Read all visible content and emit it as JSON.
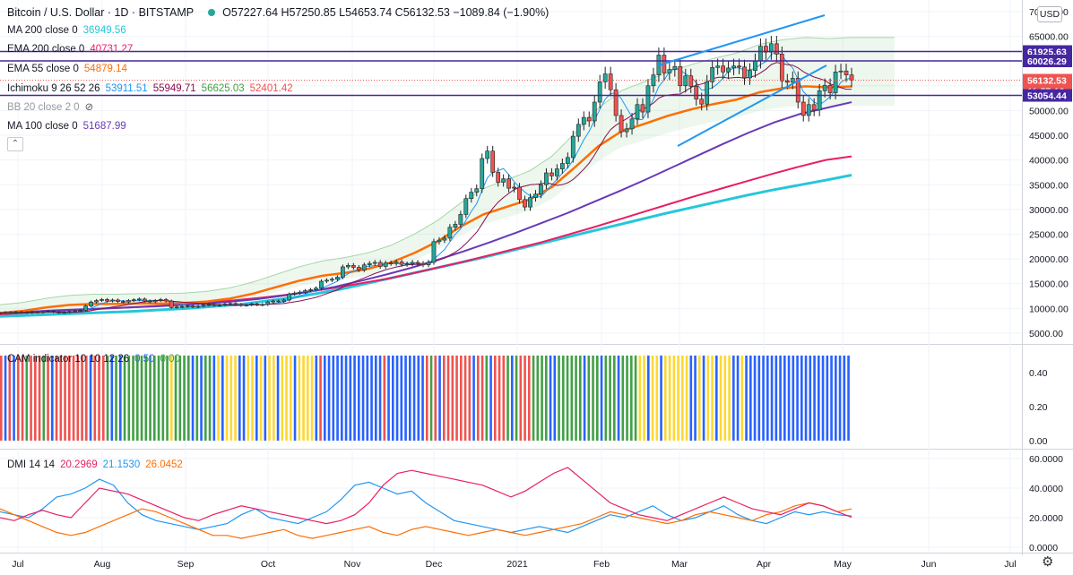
{
  "header": {
    "symbol": "Bitcoin / U.S. Dollar · 1D · BITSTAMP",
    "ohlc": "O57227.64 H57250.85 L54653.74 C56132.53 −1089.84 (−1.90%)",
    "currency_badge": "USD"
  },
  "indicators": [
    {
      "label": "MA 200 close 0",
      "values": [
        "36949.56"
      ],
      "colors": [
        "#26c6da"
      ]
    },
    {
      "label": "EMA 200 close 0",
      "values": [
        "40731.27"
      ],
      "colors": [
        "#e91e63"
      ]
    },
    {
      "label": "EMA 55 close 0",
      "values": [
        "54879.14"
      ],
      "colors": [
        "#ff6d00"
      ]
    },
    {
      "label": "Ichimoku 9 26 52 26",
      "values": [
        "53911.51",
        "55949.71",
        "56625.03",
        "52401.42"
      ],
      "colors": [
        "#2196f3",
        "#880e4f",
        "#43a047",
        "#ef5350"
      ]
    },
    {
      "label": "BB 20 close 2 0",
      "values": [],
      "colors": []
    },
    {
      "label": "MA 100 close 0",
      "values": [
        "51687.99"
      ],
      "colors": [
        "#673ab7"
      ]
    }
  ],
  "cam": {
    "label": "CAM indicator 10 10 12 26",
    "values": [
      "0.50",
      "0.00"
    ],
    "colors": [
      "#2962ff",
      "#43a047"
    ]
  },
  "dmi": {
    "label": "DMI 14 14",
    "values": [
      "20.2969",
      "21.1530",
      "26.0452"
    ],
    "colors": [
      "#e91e63",
      "#2196f3",
      "#ff6d00"
    ]
  },
  "chart_data": {
    "type": "candlestick",
    "title": "Bitcoin / U.S. Dollar · 1D · BITSTAMP",
    "x_ticks": [
      "Jul",
      "Aug",
      "Sep",
      "Oct",
      "Nov",
      "Dec",
      "2021",
      "Feb",
      "Mar",
      "Apr",
      "May",
      "Jun",
      "Jul"
    ],
    "y_ticks_main": [
      "70000.00",
      "65000.00",
      "60000.00",
      "55000.00",
      "50000.00",
      "45000.00",
      "40000.00",
      "35000.00",
      "30000.00",
      "25000.00",
      "20000.00",
      "15000.00",
      "10000.00",
      "5000.00"
    ],
    "y_ticks_main_values": [
      70000,
      65000,
      60000,
      55000,
      50000,
      45000,
      40000,
      35000,
      30000,
      25000,
      20000,
      15000,
      10000,
      5000
    ],
    "price_labels": [
      {
        "text": "61925.63",
        "value": 61925.63,
        "color": "#4527a0"
      },
      {
        "text": "60026.29",
        "value": 60026.29,
        "color": "#4527a0"
      },
      {
        "text": "56132.53",
        "value": 56132.53,
        "color": "#ef5350"
      },
      {
        "text": "11:57:12",
        "value": 54600,
        "color": "#ef5350"
      },
      {
        "text": "53054.44",
        "value": 53054.44,
        "color": "#4527a0"
      }
    ],
    "horizontal_lines": [
      61925.63,
      60026.29,
      53054.44
    ],
    "close_series": [
      9100,
      9200,
      9150,
      9300,
      9200,
      9100,
      9250,
      9200,
      9300,
      9400,
      9250,
      9150,
      9200,
      9350,
      9500,
      9600,
      10500,
      11300,
      11600,
      11800,
      11500,
      11700,
      11400,
      11300,
      11600,
      11750,
      11900,
      11500,
      11350,
      11600,
      11800,
      11500,
      10200,
      10300,
      10400,
      10500,
      10300,
      10450,
      10700,
      10800,
      10600,
      10700,
      10900,
      11000,
      10800,
      10600,
      10700,
      10900,
      10700,
      10800,
      11300,
      11500,
      11400,
      11700,
      12900,
      13100,
      13300,
      13600,
      13800,
      14100,
      15500,
      15700,
      15900,
      16300,
      18400,
      18700,
      18300,
      17800,
      18800,
      19100,
      19300,
      18500,
      19200,
      19100,
      19400,
      18900,
      19000,
      19300,
      19100,
      18800,
      19300,
      23500,
      23800,
      24200,
      26400,
      27000,
      29000,
      32200,
      33500,
      34200,
      40300,
      41800,
      37500,
      35500,
      36200,
      34300,
      34500,
      32000,
      30500,
      32400,
      33100,
      35000,
      37400,
      36800,
      38200,
      39300,
      40500,
      44800,
      47200,
      48600,
      47900,
      51700,
      55800,
      57400,
      54200,
      49000,
      45700,
      46300,
      48300,
      51200,
      49700,
      55000,
      57200,
      61200,
      57600,
      58300,
      58900,
      55000,
      57000,
      54900,
      52300,
      51300,
      55800,
      58700,
      59000,
      57800,
      58600,
      59000,
      58800,
      56600,
      58100,
      60000,
      63000,
      61800,
      63500,
      61400,
      56000,
      55700,
      56500,
      51700,
      49000,
      51200,
      50100,
      54000,
      55100,
      53600,
      57800,
      58000,
      57200,
      56100
    ],
    "ma200": [
      8400,
      8600,
      8800,
      9000,
      9200,
      9400,
      9700,
      10000,
      10400,
      10800,
      11500,
      12200,
      13100,
      14100,
      15300,
      16500,
      17700,
      18900,
      20100,
      21400,
      22700,
      24000,
      25300,
      26600,
      27900,
      29200,
      30400,
      31600,
      32800,
      33900,
      34900,
      35900,
      36949.56
    ],
    "ema200": [
      8800,
      9100,
      9400,
      9700,
      9950,
      10200,
      10500,
      10800,
      11200,
      11600,
      12100,
      12700,
      13400,
      14200,
      15100,
      16000,
      17100,
      18300,
      19500,
      20800,
      22100,
      23400,
      24900,
      26400,
      28000,
      29600,
      31200,
      32800,
      34300,
      35800,
      37300,
      38700,
      40000,
      40731.27
    ],
    "ema55": [
      9100,
      9500,
      10200,
      10700,
      10900,
      10900,
      11000,
      11000,
      11100,
      11400,
      12000,
      13000,
      14300,
      15600,
      16600,
      17200,
      18000,
      19300,
      21200,
      23500,
      26500,
      29000,
      30500,
      32000,
      34600,
      38600,
      42800,
      45800,
      47300,
      48900,
      50200,
      51300,
      52200,
      53700,
      54500,
      54900,
      54700,
      54879.14
    ],
    "ma100": [
      9000,
      9300,
      9600,
      9800,
      10000,
      10200,
      10400,
      10700,
      11000,
      11400,
      11900,
      12600,
      13400,
      14400,
      15600,
      16900,
      18300,
      19900,
      21600,
      23400,
      25300,
      27300,
      29300,
      31500,
      33700,
      36000,
      38400,
      40800,
      43200,
      45500,
      47600,
      49300,
      50500,
      51687.99
    ],
    "cam_colors_pattern": "R,G,Y,B",
    "y_ticks_cam": [
      "0.40",
      "0.20",
      "0.00"
    ],
    "y_ticks_cam_values": [
      0.4,
      0.2,
      0.0
    ],
    "y_ticks_dmi": [
      "60.0000",
      "40.0000",
      "20.0000",
      "0.0000"
    ],
    "y_ticks_dmi_values": [
      60,
      40,
      20,
      0
    ],
    "dmi_plus": [
      20,
      18,
      22,
      25,
      22,
      20,
      30,
      40,
      38,
      36,
      32,
      28,
      24,
      20,
      18,
      22,
      25,
      28,
      26,
      24,
      22,
      20,
      18,
      16,
      18,
      22,
      30,
      42,
      50,
      52,
      50,
      48,
      46,
      44,
      42,
      38,
      34,
      38,
      44,
      50,
      54,
      46,
      38,
      30,
      26,
      22,
      20,
      18,
      22,
      26,
      30,
      34,
      30,
      26,
      24,
      22,
      26,
      30,
      28,
      24,
      20.2969
    ],
    "dmi_minus": [
      24,
      22,
      20,
      26,
      34,
      36,
      40,
      46,
      42,
      30,
      22,
      18,
      16,
      14,
      12,
      14,
      16,
      22,
      26,
      20,
      18,
      16,
      20,
      24,
      32,
      42,
      44,
      40,
      36,
      38,
      30,
      24,
      18,
      16,
      14,
      12,
      10,
      12,
      14,
      12,
      10,
      14,
      18,
      22,
      20,
      24,
      28,
      22,
      18,
      20,
      24,
      28,
      22,
      18,
      16,
      20,
      24,
      22,
      24,
      22,
      21.153
    ],
    "dmi_adx": [
      26,
      22,
      18,
      14,
      10,
      8,
      10,
      14,
      18,
      22,
      26,
      24,
      20,
      16,
      12,
      8,
      8,
      6,
      8,
      10,
      12,
      8,
      6,
      8,
      10,
      12,
      14,
      10,
      8,
      12,
      14,
      12,
      10,
      8,
      10,
      12,
      10,
      8,
      10,
      12,
      14,
      16,
      20,
      24,
      22,
      20,
      18,
      16,
      18,
      22,
      24,
      22,
      20,
      18,
      22,
      24,
      28,
      30,
      28,
      24,
      26.0452
    ]
  }
}
